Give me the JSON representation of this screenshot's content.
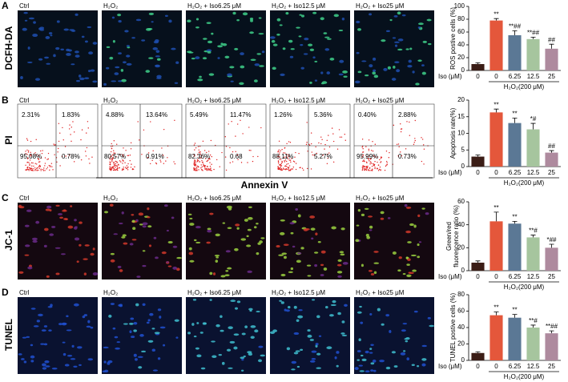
{
  "panels": [
    {
      "letter": "A",
      "label": "DCFH-DA"
    },
    {
      "letter": "B",
      "label": "PI"
    },
    {
      "letter": "C",
      "label": "JC-1"
    },
    {
      "letter": "D",
      "label": "TUNEL"
    }
  ],
  "captions": [
    "Ctrl",
    "H₂O₂",
    "H₂O₂ + Iso6.25 μM",
    "H₂O₂ + Iso12.5 μM",
    "H₂O₂ + Iso25 μM"
  ],
  "flow": {
    "x_label": "Annexin V",
    "quadrants": [
      [
        "2.31%",
        "1.83%",
        "95.08%",
        "0.78%"
      ],
      [
        "4.88%",
        "13.64%",
        "80.57%",
        "0.91%"
      ],
      [
        "5.49%",
        "11.47%",
        "82.36%",
        "0.68"
      ],
      [
        "1.26%",
        "5.36%",
        "88.11%",
        "5.27%"
      ],
      [
        "0.40%",
        "2.88%",
        "95.99%",
        "0.73%"
      ]
    ]
  },
  "chart_data": [
    {
      "type": "bar",
      "y_label": [
        "ROS postive cells (%)"
      ],
      "categories": [
        "0",
        "0",
        "6.25",
        "12.5",
        "25"
      ],
      "x_prefix": "Iso (μM)",
      "group_label": "H₂O₂(200 μM)",
      "values": [
        10,
        78,
        55,
        49,
        34
      ],
      "errors": [
        2,
        3,
        7,
        3,
        7
      ],
      "annotations": [
        null,
        "**",
        "**##",
        "**##",
        "##"
      ],
      "colors": [
        "#3b1d16",
        "#e4573b",
        "#5b7895",
        "#a6c59e",
        "#ae8a9e"
      ],
      "ylim": [
        0,
        100
      ],
      "yticks": [
        0,
        20,
        40,
        60,
        80,
        100
      ]
    },
    {
      "type": "bar",
      "y_label": [
        "Apoptosis rate(%)"
      ],
      "categories": [
        "0",
        "0",
        "6.25",
        "12.5",
        "25"
      ],
      "x_prefix": "Iso (μM)",
      "group_label": "H₂O₂(200 μM)",
      "values": [
        3,
        16.3,
        13.1,
        11.2,
        4.2
      ],
      "errors": [
        0.5,
        1,
        1.5,
        1.8,
        0.6
      ],
      "annotations": [
        null,
        "**",
        "**",
        "*#",
        "##"
      ],
      "colors": [
        "#3b1d16",
        "#e4573b",
        "#5b7895",
        "#a6c59e",
        "#ae8a9e"
      ],
      "ylim": [
        0,
        20
      ],
      "yticks": [
        0,
        5,
        10,
        15,
        20
      ]
    },
    {
      "type": "bar",
      "y_label": [
        "Green/red",
        "fluorescence ratio (%)"
      ],
      "categories": [
        "0",
        "0",
        "6.25",
        "12.5",
        "25"
      ],
      "x_prefix": "Iso (μM)",
      "group_label": "H₂O₂(200 μM)",
      "values": [
        7,
        43,
        41,
        29,
        20
      ],
      "errors": [
        1.5,
        8,
        2,
        2,
        3
      ],
      "annotations": [
        null,
        "**",
        "**",
        "**#",
        "*##"
      ],
      "colors": [
        "#3b1d16",
        "#e4573b",
        "#5b7895",
        "#a6c59e",
        "#ae8a9e"
      ],
      "ylim": [
        0,
        60
      ],
      "yticks": [
        0,
        20,
        40,
        60
      ]
    },
    {
      "type": "bar",
      "y_label": [
        "TUNEL postive cells (%)"
      ],
      "categories": [
        "0",
        "0",
        "6.25",
        "12.5",
        "25"
      ],
      "x_prefix": "Iso (μM)",
      "group_label": "H₂O₂(200 μM)",
      "values": [
        9,
        55,
        52,
        40,
        33
      ],
      "errors": [
        1.5,
        4,
        4,
        3,
        3
      ],
      "annotations": [
        null,
        "**",
        "**",
        "**#",
        "**##"
      ],
      "colors": [
        "#3b1d16",
        "#e4573b",
        "#5b7895",
        "#a6c59e",
        "#ae8a9e"
      ],
      "ylim": [
        0,
        80
      ],
      "yticks": [
        0,
        20,
        40,
        60,
        80
      ]
    }
  ]
}
